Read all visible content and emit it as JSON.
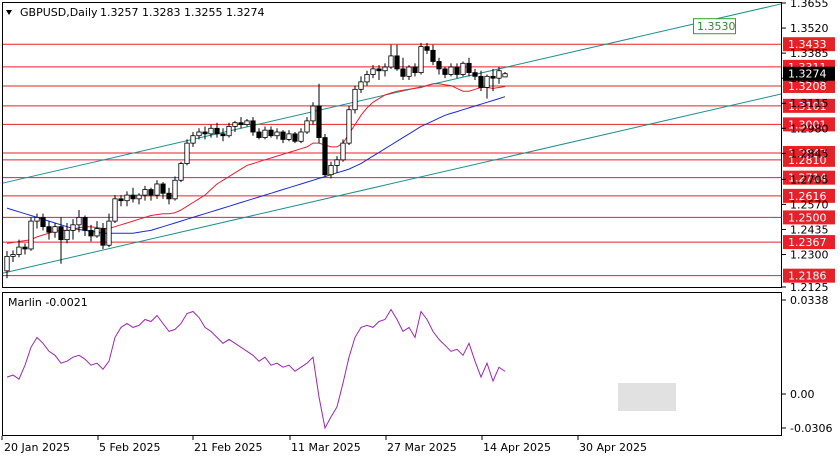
{
  "header": {
    "symbol": "GBPUSD,Daily",
    "ohlc": "1.3257  1.3283  1.3255  1.3274"
  },
  "oscillator": {
    "name": "Marlin -0.0021",
    "ticks": [
      "0.0338",
      "0.00",
      "-0.0306"
    ],
    "ylim": [
      -0.0306,
      0.0338
    ]
  },
  "price_axis": {
    "ylim": [
      1.2125,
      1.3655
    ],
    "ticks": [
      "1.3655",
      "1.3520",
      "1.3385",
      "1.3250",
      "1.3115",
      "1.2980",
      "1.2845",
      "1.2705",
      "1.2570",
      "1.2435",
      "1.2300",
      "1.2125"
    ],
    "current_price": "1.3274"
  },
  "x_axis": {
    "labels": [
      "20 Jan 2025",
      "5 Feb 2025",
      "21 Feb 2025",
      "11 Mar 2025",
      "27 Mar 2025",
      "14 Apr 2025",
      "30 Apr 2025"
    ]
  },
  "chart_data": {
    "type": "candlestick",
    "x": [
      "20 Jan 2025",
      "5 Feb 2025",
      "21 Feb 2025",
      "11 Mar 2025",
      "27 Mar 2025",
      "14 Apr 2025",
      "30 Apr 2025"
    ],
    "candles": [
      [
        1.2212,
        1.2318,
        1.2172,
        1.229
      ],
      [
        1.229,
        1.2322,
        1.226,
        1.23
      ],
      [
        1.23,
        1.238,
        1.2285,
        1.234
      ],
      [
        1.234,
        1.236,
        1.23,
        1.233
      ],
      [
        1.233,
        1.25,
        1.232,
        1.248
      ],
      [
        1.248,
        1.252,
        1.244,
        1.25
      ],
      [
        1.25,
        1.252,
        1.243,
        1.245
      ],
      [
        1.245,
        1.248,
        1.238,
        1.242
      ],
      [
        1.242,
        1.247,
        1.239,
        1.245
      ],
      [
        1.245,
        1.25,
        1.225,
        1.238
      ],
      [
        1.238,
        1.247,
        1.236,
        1.243
      ],
      [
        1.243,
        1.249,
        1.238,
        1.246
      ],
      [
        1.246,
        1.254,
        1.242,
        1.25
      ],
      [
        1.25,
        1.251,
        1.24,
        1.243
      ],
      [
        1.243,
        1.246,
        1.237,
        1.24
      ],
      [
        1.24,
        1.248,
        1.239,
        1.244
      ],
      [
        1.244,
        1.247,
        1.233,
        1.235
      ],
      [
        1.235,
        1.252,
        1.234,
        1.248
      ],
      [
        1.248,
        1.262,
        1.247,
        1.26
      ],
      [
        1.26,
        1.262,
        1.256,
        1.259
      ],
      [
        1.259,
        1.264,
        1.256,
        1.262
      ],
      [
        1.262,
        1.266,
        1.258,
        1.26
      ],
      [
        1.26,
        1.263,
        1.257,
        1.262
      ],
      [
        1.262,
        1.267,
        1.259,
        1.265
      ],
      [
        1.265,
        1.266,
        1.259,
        1.262
      ],
      [
        1.262,
        1.27,
        1.26,
        1.268
      ],
      [
        1.268,
        1.269,
        1.26,
        1.263
      ],
      [
        1.263,
        1.266,
        1.257,
        1.26
      ],
      [
        1.26,
        1.272,
        1.259,
        1.27
      ],
      [
        1.27,
        1.28,
        1.269,
        1.279
      ],
      [
        1.279,
        1.292,
        1.278,
        1.29
      ],
      [
        1.29,
        1.296,
        1.288,
        1.294
      ],
      [
        1.294,
        1.298,
        1.292,
        1.296
      ],
      [
        1.296,
        1.299,
        1.292,
        1.295
      ],
      [
        1.295,
        1.3,
        1.293,
        1.298
      ],
      [
        1.298,
        1.301,
        1.293,
        1.295
      ],
      [
        1.295,
        1.298,
        1.291,
        1.294
      ],
      [
        1.294,
        1.301,
        1.293,
        1.299
      ],
      [
        1.299,
        1.302,
        1.296,
        1.301
      ],
      [
        1.301,
        1.304,
        1.298,
        1.3
      ],
      [
        1.3,
        1.303,
        1.299,
        1.302
      ],
      [
        1.302,
        1.304,
        1.294,
        1.296
      ],
      [
        1.296,
        1.298,
        1.292,
        1.293
      ],
      [
        1.293,
        1.299,
        1.292,
        1.297
      ],
      [
        1.297,
        1.299,
        1.293,
        1.294
      ],
      [
        1.294,
        1.298,
        1.292,
        1.296
      ],
      [
        1.296,
        1.297,
        1.29,
        1.292
      ],
      [
        1.292,
        1.297,
        1.291,
        1.295
      ],
      [
        1.295,
        1.296,
        1.29,
        1.291
      ],
      [
        1.291,
        1.298,
        1.29,
        1.296
      ],
      [
        1.296,
        1.304,
        1.295,
        1.302
      ],
      [
        1.302,
        1.312,
        1.3,
        1.31
      ],
      [
        1.31,
        1.322,
        1.29,
        1.293
      ],
      [
        1.293,
        1.295,
        1.272,
        1.273
      ],
      [
        1.273,
        1.28,
        1.271,
        1.278
      ],
      [
        1.278,
        1.283,
        1.274,
        1.281
      ],
      [
        1.281,
        1.292,
        1.28,
        1.29
      ],
      [
        1.29,
        1.31,
        1.289,
        1.308
      ],
      [
        1.308,
        1.321,
        1.306,
        1.319
      ],
      [
        1.319,
        1.326,
        1.317,
        1.323
      ],
      [
        1.323,
        1.329,
        1.321,
        1.327
      ],
      [
        1.327,
        1.332,
        1.325,
        1.33
      ],
      [
        1.33,
        1.332,
        1.324,
        1.329
      ],
      [
        1.329,
        1.333,
        1.326,
        1.331
      ],
      [
        1.331,
        1.343,
        1.33,
        1.337
      ],
      [
        1.337,
        1.343,
        1.329,
        1.33
      ],
      [
        1.33,
        1.336,
        1.324,
        1.326
      ],
      [
        1.326,
        1.332,
        1.324,
        1.331
      ],
      [
        1.331,
        1.333,
        1.326,
        1.328
      ],
      [
        1.328,
        1.344,
        1.327,
        1.342
      ],
      [
        1.342,
        1.344,
        1.338,
        1.34
      ],
      [
        1.34,
        1.343,
        1.332,
        1.334
      ],
      [
        1.334,
        1.336,
        1.327,
        1.33
      ],
      [
        1.33,
        1.331,
        1.325,
        1.327
      ],
      [
        1.327,
        1.333,
        1.326,
        1.331
      ],
      [
        1.331,
        1.333,
        1.325,
        1.327
      ],
      [
        1.327,
        1.334,
        1.326,
        1.333
      ],
      [
        1.333,
        1.336,
        1.326,
        1.328
      ],
      [
        1.328,
        1.33,
        1.324,
        1.326
      ],
      [
        1.326,
        1.329,
        1.318,
        1.32
      ],
      [
        1.32,
        1.327,
        1.314,
        1.326
      ],
      [
        1.326,
        1.33,
        1.318,
        1.325
      ],
      [
        1.325,
        1.331,
        1.322,
        1.329
      ],
      [
        1.3257,
        1.3283,
        1.3255,
        1.3274
      ]
    ],
    "sma_red": [
      1.236,
      1.2365,
      1.237,
      1.2375,
      1.238,
      1.2395,
      1.2405,
      1.2415,
      1.2425,
      1.243,
      1.243,
      1.2435,
      1.2445,
      1.245,
      1.245,
      1.2445,
      1.244,
      1.244,
      1.245,
      1.246,
      1.247,
      1.248,
      1.249,
      1.25,
      1.251,
      1.2515,
      1.252,
      1.252,
      1.2525,
      1.254,
      1.256,
      1.258,
      1.26,
      1.262,
      1.265,
      1.268,
      1.27,
      1.272,
      1.274,
      1.276,
      1.278,
      1.279,
      1.28,
      1.281,
      1.282,
      1.283,
      1.284,
      1.285,
      1.286,
      1.287,
      1.288,
      1.29,
      1.29,
      1.289,
      1.288,
      1.288,
      1.29,
      1.295,
      1.3,
      1.305,
      1.309,
      1.312,
      1.314,
      1.316,
      1.317,
      1.318,
      1.3185,
      1.319,
      1.3195,
      1.32,
      1.321,
      1.322,
      1.322,
      1.3215,
      1.321,
      1.3195,
      1.318,
      1.318,
      1.319,
      1.32,
      1.32,
      1.3195,
      1.32,
      1.3205
    ],
    "sma_blue": [
      1.255,
      1.254,
      1.253,
      1.252,
      1.251,
      1.25,
      1.249,
      1.248,
      1.247,
      1.246,
      1.245,
      1.244,
      1.2435,
      1.243,
      1.2425,
      1.242,
      1.2415,
      1.2415,
      1.2415,
      1.2415,
      1.2415,
      1.2415,
      1.242,
      1.2425,
      1.243,
      1.244,
      1.245,
      1.246,
      1.247,
      1.248,
      1.249,
      1.25,
      1.251,
      1.252,
      1.253,
      1.254,
      1.255,
      1.256,
      1.257,
      1.258,
      1.259,
      1.26,
      1.261,
      1.262,
      1.263,
      1.264,
      1.265,
      1.266,
      1.267,
      1.268,
      1.269,
      1.27,
      1.271,
      1.272,
      1.273,
      1.274,
      1.275,
      1.276,
      1.2775,
      1.279,
      1.281,
      1.283,
      1.285,
      1.287,
      1.289,
      1.291,
      1.293,
      1.295,
      1.297,
      1.299,
      1.3005,
      1.302,
      1.3035,
      1.305,
      1.306,
      1.307,
      1.308,
      1.309,
      1.31,
      1.311,
      1.312,
      1.313,
      1.314,
      1.315
    ],
    "levels": [
      "1.3433",
      "1.3311",
      "1.3208",
      "1.3101",
      "1.3001",
      "1.2847",
      "1.2810",
      "1.2714",
      "1.2616",
      "1.2500",
      "1.2367",
      "1.2186"
    ],
    "channel_label": "1.3530",
    "upper_channel": [
      [
        0,
        1.2685
      ],
      [
        86,
        1.365
      ]
    ],
    "lower_channel": [
      [
        0,
        1.22
      ],
      [
        86,
        1.3165
      ]
    ],
    "marlin": [
      -0.005,
      -0.004,
      -0.006,
      0.001,
      0.01,
      0.015,
      0.012,
      0.008,
      0.006,
      0.002,
      0.003,
      0.005,
      0.006,
      0.004,
      0.001,
      0.002,
      -0.001,
      0.003,
      0.015,
      0.02,
      0.022,
      0.02,
      0.021,
      0.024,
      0.023,
      0.026,
      0.022,
      0.018,
      0.019,
      0.022,
      0.027,
      0.028,
      0.025,
      0.02,
      0.018,
      0.015,
      0.012,
      0.014,
      0.012,
      0.01,
      0.008,
      0.006,
      0.003,
      0.005,
      0.001,
      0.002,
      0.0,
      0.001,
      -0.002,
      0.0,
      0.002,
      0.005,
      -0.015,
      -0.0306,
      -0.025,
      -0.02,
      -0.008,
      0.005,
      0.015,
      0.02,
      0.021,
      0.02,
      0.023,
      0.024,
      0.029,
      0.024,
      0.018,
      0.02,
      0.015,
      0.028,
      0.024,
      0.018,
      0.014,
      0.011,
      0.008,
      0.009,
      0.006,
      0.012,
      0.003,
      -0.005,
      0.002,
      -0.007,
      0.0,
      -0.0021
    ]
  }
}
